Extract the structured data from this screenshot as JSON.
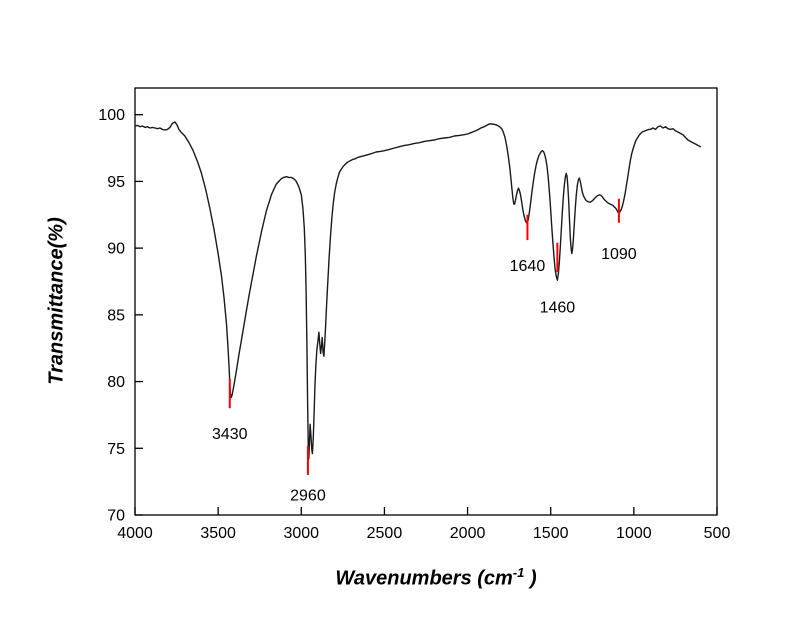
{
  "chart_data": {
    "type": "line",
    "title": "",
    "ylabel": "Transmittance(%)",
    "xlabel": {
      "prefix": "Wavenumbers (cm",
      "sup": "-1",
      "suffix": " )"
    },
    "x_range": [
      4000,
      500
    ],
    "y_range": [
      70,
      102
    ],
    "x_axis_reversed": true,
    "x_ticks": [
      4000,
      3500,
      3000,
      2500,
      2000,
      1500,
      1000,
      500
    ],
    "y_ticks": [
      70,
      75,
      80,
      85,
      90,
      95,
      100
    ],
    "line_color": "#1a1a1a",
    "marker_color": "#ff0000",
    "frame_color": "#000000",
    "peaks": [
      {
        "wavenumber": 3430,
        "label": "3430",
        "marker_top": 80.2,
        "marker_bottom": 78.0,
        "label_y": 76.1
      },
      {
        "wavenumber": 2960,
        "label": "2960",
        "marker_top": 75.2,
        "marker_bottom": 73.0,
        "label_y": 71.5
      },
      {
        "wavenumber": 1640,
        "label": "1640",
        "marker_top": 92.5,
        "marker_bottom": 90.6,
        "label_y": 88.7
      },
      {
        "wavenumber": 1460,
        "label": "1460",
        "marker_top": 90.4,
        "marker_bottom": 88.2,
        "label_y": 85.6
      },
      {
        "wavenumber": 1090,
        "label": "1090",
        "marker_top": 93.7,
        "marker_bottom": 91.9,
        "label_y": 89.6
      }
    ],
    "points": [
      [
        4000,
        99.15
      ],
      [
        3985,
        99.2
      ],
      [
        3970,
        99.1
      ],
      [
        3955,
        99.15
      ],
      [
        3940,
        99.05
      ],
      [
        3925,
        99.1
      ],
      [
        3910,
        99.0
      ],
      [
        3895,
        99.05
      ],
      [
        3880,
        99.0
      ],
      [
        3865,
        98.95
      ],
      [
        3850,
        99.0
      ],
      [
        3835,
        98.9
      ],
      [
        3820,
        98.85
      ],
      [
        3805,
        98.9
      ],
      [
        3790,
        99.05
      ],
      [
        3775,
        99.35
      ],
      [
        3760,
        99.45
      ],
      [
        3748,
        99.25
      ],
      [
        3736,
        98.9
      ],
      [
        3724,
        98.7
      ],
      [
        3712,
        98.55
      ],
      [
        3700,
        98.4
      ],
      [
        3675,
        97.9
      ],
      [
        3650,
        97.3
      ],
      [
        3625,
        96.5
      ],
      [
        3600,
        95.6
      ],
      [
        3575,
        94.4
      ],
      [
        3550,
        93.0
      ],
      [
        3525,
        91.4
      ],
      [
        3500,
        89.6
      ],
      [
        3480,
        87.9
      ],
      [
        3465,
        86.3
      ],
      [
        3450,
        84.3
      ],
      [
        3442,
        82.8
      ],
      [
        3435,
        81.2
      ],
      [
        3430,
        79.9
      ],
      [
        3426,
        79.1
      ],
      [
        3422,
        78.8
      ],
      [
        3416,
        79.0
      ],
      [
        3408,
        79.5
      ],
      [
        3400,
        80.1
      ],
      [
        3388,
        81.0
      ],
      [
        3375,
        82.0
      ],
      [
        3360,
        83.1
      ],
      [
        3345,
        84.2
      ],
      [
        3330,
        85.3
      ],
      [
        3315,
        86.4
      ],
      [
        3300,
        87.4
      ],
      [
        3285,
        88.4
      ],
      [
        3270,
        89.4
      ],
      [
        3255,
        90.3
      ],
      [
        3240,
        91.2
      ],
      [
        3225,
        92.0
      ],
      [
        3210,
        92.8
      ],
      [
        3195,
        93.4
      ],
      [
        3180,
        94.0
      ],
      [
        3165,
        94.4
      ],
      [
        3150,
        94.8
      ],
      [
        3135,
        95.0
      ],
      [
        3120,
        95.2
      ],
      [
        3105,
        95.3
      ],
      [
        3090,
        95.35
      ],
      [
        3075,
        95.3
      ],
      [
        3060,
        95.3
      ],
      [
        3045,
        95.2
      ],
      [
        3030,
        95.0
      ],
      [
        3015,
        94.6
      ],
      [
        3000,
        94.0
      ],
      [
        2990,
        93.0
      ],
      [
        2982,
        91.5
      ],
      [
        2976,
        89.5
      ],
      [
        2971,
        86.8
      ],
      [
        2966,
        82.8
      ],
      [
        2962,
        78.5
      ],
      [
        2958,
        75.0
      ],
      [
        2955,
        74.2
      ],
      [
        2951,
        75.3
      ],
      [
        2947,
        76.8
      ],
      [
        2942,
        76.0
      ],
      [
        2937,
        74.9
      ],
      [
        2933,
        74.6
      ],
      [
        2928,
        75.8
      ],
      [
        2923,
        77.6
      ],
      [
        2918,
        79.6
      ],
      [
        2912,
        81.3
      ],
      [
        2906,
        82.4
      ],
      [
        2900,
        83.0
      ],
      [
        2894,
        83.7
      ],
      [
        2889,
        82.9
      ],
      [
        2884,
        82.1
      ],
      [
        2879,
        82.6
      ],
      [
        2874,
        83.3
      ],
      [
        2869,
        82.2
      ],
      [
        2864,
        81.9
      ],
      [
        2859,
        82.9
      ],
      [
        2853,
        84.3
      ],
      [
        2847,
        85.9
      ],
      [
        2840,
        87.6
      ],
      [
        2832,
        89.4
      ],
      [
        2824,
        91.0
      ],
      [
        2816,
        92.3
      ],
      [
        2808,
        93.3
      ],
      [
        2800,
        94.1
      ],
      [
        2790,
        94.8
      ],
      [
        2780,
        95.3
      ],
      [
        2770,
        95.7
      ],
      [
        2760,
        95.9
      ],
      [
        2750,
        96.1
      ],
      [
        2735,
        96.3
      ],
      [
        2720,
        96.45
      ],
      [
        2705,
        96.55
      ],
      [
        2690,
        96.65
      ],
      [
        2675,
        96.7
      ],
      [
        2660,
        96.8
      ],
      [
        2645,
        96.85
      ],
      [
        2630,
        96.9
      ],
      [
        2615,
        96.95
      ],
      [
        2600,
        97.0
      ],
      [
        2575,
        97.1
      ],
      [
        2550,
        97.2
      ],
      [
        2525,
        97.25
      ],
      [
        2500,
        97.3
      ],
      [
        2470,
        97.4
      ],
      [
        2440,
        97.5
      ],
      [
        2410,
        97.6
      ],
      [
        2380,
        97.7
      ],
      [
        2350,
        97.75
      ],
      [
        2320,
        97.85
      ],
      [
        2290,
        97.9
      ],
      [
        2260,
        98.0
      ],
      [
        2230,
        98.05
      ],
      [
        2200,
        98.1
      ],
      [
        2170,
        98.2
      ],
      [
        2140,
        98.25
      ],
      [
        2110,
        98.3
      ],
      [
        2080,
        98.4
      ],
      [
        2050,
        98.45
      ],
      [
        2020,
        98.5
      ],
      [
        2000,
        98.55
      ],
      [
        1980,
        98.65
      ],
      [
        1960,
        98.75
      ],
      [
        1940,
        98.85
      ],
      [
        1920,
        99.0
      ],
      [
        1900,
        99.1
      ],
      [
        1885,
        99.2
      ],
      [
        1870,
        99.3
      ],
      [
        1855,
        99.3
      ],
      [
        1840,
        99.28
      ],
      [
        1825,
        99.22
      ],
      [
        1810,
        99.12
      ],
      [
        1795,
        98.95
      ],
      [
        1785,
        98.7
      ],
      [
        1775,
        98.3
      ],
      [
        1765,
        97.7
      ],
      [
        1755,
        96.9
      ],
      [
        1745,
        95.9
      ],
      [
        1735,
        94.7
      ],
      [
        1728,
        93.8
      ],
      [
        1722,
        93.3
      ],
      [
        1717,
        93.3
      ],
      [
        1712,
        93.6
      ],
      [
        1706,
        94.0
      ],
      [
        1700,
        94.3
      ],
      [
        1694,
        94.5
      ],
      [
        1688,
        94.3
      ],
      [
        1682,
        94.0
      ],
      [
        1675,
        93.5
      ],
      [
        1668,
        92.9
      ],
      [
        1660,
        92.4
      ],
      [
        1652,
        92.05
      ],
      [
        1645,
        91.9
      ],
      [
        1640,
        91.85
      ],
      [
        1634,
        92.2
      ],
      [
        1628,
        92.7
      ],
      [
        1620,
        93.5
      ],
      [
        1612,
        94.3
      ],
      [
        1604,
        95.0
      ],
      [
        1596,
        95.7
      ],
      [
        1588,
        96.2
      ],
      [
        1580,
        96.6
      ],
      [
        1572,
        96.9
      ],
      [
        1564,
        97.1
      ],
      [
        1556,
        97.25
      ],
      [
        1550,
        97.3
      ],
      [
        1544,
        97.25
      ],
      [
        1537,
        97.05
      ],
      [
        1530,
        96.7
      ],
      [
        1523,
        96.2
      ],
      [
        1516,
        95.4
      ],
      [
        1509,
        94.4
      ],
      [
        1502,
        93.2
      ],
      [
        1495,
        91.9
      ],
      [
        1488,
        90.6
      ],
      [
        1481,
        89.4
      ],
      [
        1474,
        88.5
      ],
      [
        1467,
        87.9
      ],
      [
        1460,
        87.6
      ],
      [
        1454,
        88.1
      ],
      [
        1448,
        89.0
      ],
      [
        1442,
        90.2
      ],
      [
        1436,
        91.5
      ],
      [
        1430,
        92.8
      ],
      [
        1424,
        93.9
      ],
      [
        1418,
        94.7
      ],
      [
        1412,
        95.3
      ],
      [
        1407,
        95.6
      ],
      [
        1402,
        95.4
      ],
      [
        1397,
        94.7
      ],
      [
        1392,
        93.5
      ],
      [
        1387,
        92.1
      ],
      [
        1382,
        90.8
      ],
      [
        1377,
        89.9
      ],
      [
        1373,
        89.6
      ],
      [
        1369,
        89.9
      ],
      [
        1364,
        90.6
      ],
      [
        1358,
        91.8
      ],
      [
        1352,
        93.0
      ],
      [
        1346,
        94.0
      ],
      [
        1340,
        94.7
      ],
      [
        1334,
        95.1
      ],
      [
        1328,
        95.25
      ],
      [
        1322,
        95.0
      ],
      [
        1316,
        94.6
      ],
      [
        1310,
        94.2
      ],
      [
        1302,
        93.9
      ],
      [
        1294,
        93.7
      ],
      [
        1286,
        93.55
      ],
      [
        1278,
        93.5
      ],
      [
        1270,
        93.45
      ],
      [
        1262,
        93.45
      ],
      [
        1254,
        93.5
      ],
      [
        1246,
        93.6
      ],
      [
        1238,
        93.7
      ],
      [
        1230,
        93.8
      ],
      [
        1222,
        93.9
      ],
      [
        1214,
        93.95
      ],
      [
        1206,
        94.0
      ],
      [
        1198,
        93.95
      ],
      [
        1190,
        93.85
      ],
      [
        1182,
        93.7
      ],
      [
        1174,
        93.6
      ],
      [
        1166,
        93.5
      ],
      [
        1158,
        93.4
      ],
      [
        1150,
        93.35
      ],
      [
        1142,
        93.3
      ],
      [
        1134,
        93.25
      ],
      [
        1126,
        93.2
      ],
      [
        1118,
        93.1
      ],
      [
        1110,
        93.0
      ],
      [
        1102,
        92.85
      ],
      [
        1096,
        92.7
      ],
      [
        1090,
        92.6
      ],
      [
        1084,
        92.7
      ],
      [
        1078,
        92.85
      ],
      [
        1070,
        93.1
      ],
      [
        1062,
        93.5
      ],
      [
        1054,
        94.0
      ],
      [
        1046,
        94.6
      ],
      [
        1038,
        95.2
      ],
      [
        1030,
        95.9
      ],
      [
        1022,
        96.5
      ],
      [
        1014,
        97.0
      ],
      [
        1006,
        97.4
      ],
      [
        998,
        97.7
      ],
      [
        990,
        98.0
      ],
      [
        982,
        98.2
      ],
      [
        974,
        98.35
      ],
      [
        966,
        98.5
      ],
      [
        958,
        98.6
      ],
      [
        950,
        98.7
      ],
      [
        940,
        98.75
      ],
      [
        930,
        98.8
      ],
      [
        920,
        98.85
      ],
      [
        910,
        98.9
      ],
      [
        900,
        98.9
      ],
      [
        885,
        99.0
      ],
      [
        870,
        98.9
      ],
      [
        855,
        99.1
      ],
      [
        840,
        99.15
      ],
      [
        825,
        99.0
      ],
      [
        810,
        99.1
      ],
      [
        795,
        98.95
      ],
      [
        780,
        98.9
      ],
      [
        765,
        98.95
      ],
      [
        750,
        98.8
      ],
      [
        735,
        98.7
      ],
      [
        720,
        98.6
      ],
      [
        705,
        98.5
      ],
      [
        690,
        98.3
      ],
      [
        675,
        98.1
      ],
      [
        660,
        98.0
      ],
      [
        645,
        97.9
      ],
      [
        630,
        97.8
      ],
      [
        615,
        97.7
      ],
      [
        600,
        97.6
      ]
    ]
  }
}
